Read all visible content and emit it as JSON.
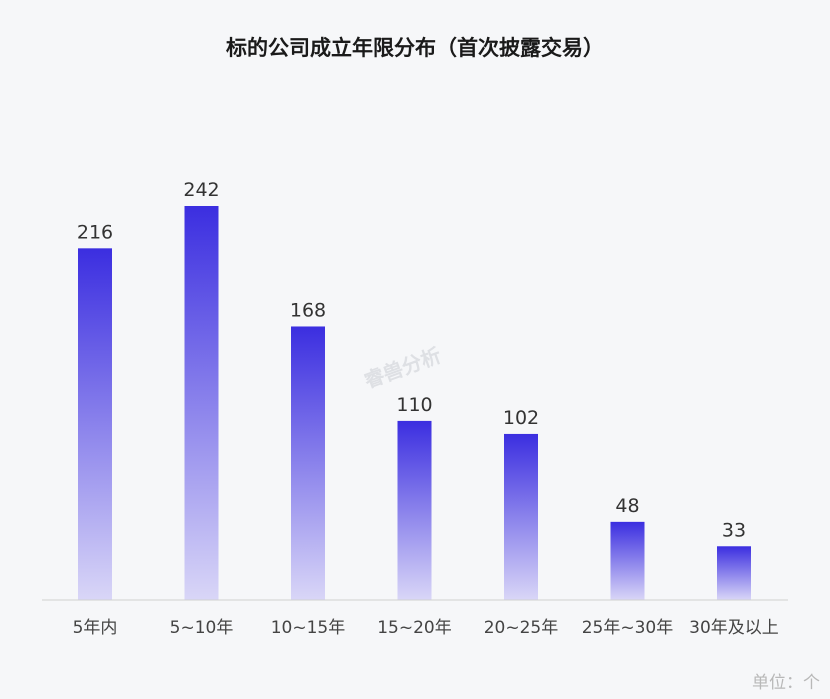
{
  "chart_data": {
    "type": "bar",
    "title": "标的公司成立年限分布（首次披露交易）",
    "categories": [
      "5年内",
      "5~10年",
      "10~15年",
      "15~20年",
      "20~25年",
      "25年~30年",
      "30年及以上"
    ],
    "values": [
      216,
      242,
      168,
      110,
      102,
      48,
      33
    ],
    "ylim": [
      0,
      250
    ],
    "grid": false,
    "bar_color_top": "#3b2ee0",
    "bar_color_bottom": "#d9d6f7"
  },
  "unit_label": "单位：个",
  "watermark": "睿兽分析"
}
